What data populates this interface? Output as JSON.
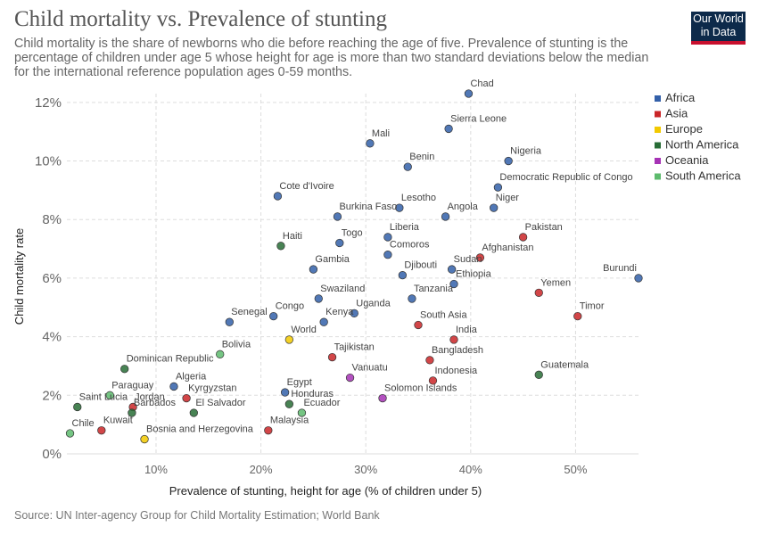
{
  "title": "Child mortality vs. Prevalence of stunting",
  "subtitle": "Child mortality is the share of newborns who die before reaching the age of five. Prevalence of stunting is the percentage of children under age 5 whose height for age is more than two standard deviations below the median for the international reference population ages 0-59 months.",
  "logo": {
    "line1": "Our World",
    "line2": "in Data"
  },
  "source": "Source: UN Inter-agency Group for Child Mortality Estimation; World Bank",
  "chart_data": {
    "type": "scatter",
    "xlabel": "Prevalence of stunting, height for age (% of children under 5)",
    "ylabel": "Child mortality rate",
    "xlim": [
      1.5,
      56
    ],
    "ylim": [
      0,
      12.3
    ],
    "x_ticks": [
      {
        "v": 10,
        "label": "10%"
      },
      {
        "v": 20,
        "label": "20%"
      },
      {
        "v": 30,
        "label": "30%"
      },
      {
        "v": 40,
        "label": "40%"
      },
      {
        "v": 50,
        "label": "50%"
      }
    ],
    "y_ticks": [
      {
        "v": 0,
        "label": "0%"
      },
      {
        "v": 2,
        "label": "2%"
      },
      {
        "v": 4,
        "label": "4%"
      },
      {
        "v": 6,
        "label": "6%"
      },
      {
        "v": 8,
        "label": "8%"
      },
      {
        "v": 10,
        "label": "10%"
      },
      {
        "v": 12,
        "label": "12%"
      }
    ],
    "grid": true,
    "legend_position": "right",
    "regions": [
      {
        "name": "Africa",
        "color": "#3360a9"
      },
      {
        "name": "Asia",
        "color": "#ca2628"
      },
      {
        "name": "Europe",
        "color": "#f2c900"
      },
      {
        "name": "North America",
        "color": "#286d36"
      },
      {
        "name": "Oceania",
        "color": "#a633b5"
      },
      {
        "name": "South America",
        "color": "#5dbb6d"
      }
    ],
    "points": [
      {
        "label": "Chad",
        "x": 39.8,
        "y": 12.3,
        "region": "Africa"
      },
      {
        "label": "Sierra Leone",
        "x": 37.9,
        "y": 11.1,
        "region": "Africa"
      },
      {
        "label": "Mali",
        "x": 30.4,
        "y": 10.6,
        "region": "Africa"
      },
      {
        "label": "Benin",
        "x": 34.0,
        "y": 9.8,
        "region": "Africa"
      },
      {
        "label": "Nigeria",
        "x": 43.6,
        "y": 10.0,
        "region": "Africa"
      },
      {
        "label": "Democratic Republic of Congo",
        "x": 42.6,
        "y": 9.1,
        "region": "Africa"
      },
      {
        "label": "Cote d'Ivoire",
        "x": 21.6,
        "y": 8.8,
        "region": "Africa"
      },
      {
        "label": "Lesotho",
        "x": 33.2,
        "y": 8.4,
        "region": "Africa"
      },
      {
        "label": "Niger",
        "x": 42.2,
        "y": 8.4,
        "region": "Africa"
      },
      {
        "label": "Burkina Faso",
        "x": 27.3,
        "y": 8.1,
        "region": "Africa"
      },
      {
        "label": "Angola",
        "x": 37.6,
        "y": 8.1,
        "region": "Africa"
      },
      {
        "label": "Haiti",
        "x": 21.9,
        "y": 7.1,
        "region": "North America"
      },
      {
        "label": "Togo",
        "x": 27.5,
        "y": 7.2,
        "region": "Africa"
      },
      {
        "label": "Liberia",
        "x": 32.1,
        "y": 7.4,
        "region": "Africa"
      },
      {
        "label": "Pakistan",
        "x": 45.0,
        "y": 7.4,
        "region": "Asia"
      },
      {
        "label": "Comoros",
        "x": 32.1,
        "y": 6.8,
        "region": "Africa"
      },
      {
        "label": "Afghanistan",
        "x": 40.9,
        "y": 6.7,
        "region": "Asia"
      },
      {
        "label": "Gambia",
        "x": 25.0,
        "y": 6.3,
        "region": "Africa"
      },
      {
        "label": "Djibouti",
        "x": 33.5,
        "y": 6.1,
        "region": "Africa"
      },
      {
        "label": "Sudan",
        "x": 38.2,
        "y": 6.3,
        "region": "Africa"
      },
      {
        "label": "Burundi",
        "x": 56.0,
        "y": 6.0,
        "region": "Africa"
      },
      {
        "label": "Ethiopia",
        "x": 38.4,
        "y": 5.8,
        "region": "Africa"
      },
      {
        "label": "Yemen",
        "x": 46.5,
        "y": 5.5,
        "region": "Asia"
      },
      {
        "label": "Swaziland",
        "x": 25.5,
        "y": 5.3,
        "region": "Africa"
      },
      {
        "label": "Tanzania",
        "x": 34.4,
        "y": 5.3,
        "region": "Africa"
      },
      {
        "label": "Timor",
        "x": 50.2,
        "y": 4.7,
        "region": "Asia"
      },
      {
        "label": "Uganda",
        "x": 28.9,
        "y": 4.8,
        "region": "Africa"
      },
      {
        "label": "Congo",
        "x": 21.2,
        "y": 4.7,
        "region": "Africa"
      },
      {
        "label": "Senegal",
        "x": 17.0,
        "y": 4.5,
        "region": "Africa"
      },
      {
        "label": "Kenya",
        "x": 26.0,
        "y": 4.5,
        "region": "Africa"
      },
      {
        "label": "South Asia",
        "x": 35.0,
        "y": 4.4,
        "region": "Asia"
      },
      {
        "label": "World",
        "x": 22.7,
        "y": 3.9,
        "region": "Europe"
      },
      {
        "label": "India",
        "x": 38.4,
        "y": 3.9,
        "region": "Asia"
      },
      {
        "label": "Bolivia",
        "x": 16.1,
        "y": 3.4,
        "region": "South America"
      },
      {
        "label": "Tajikistan",
        "x": 26.8,
        "y": 3.3,
        "region": "Asia"
      },
      {
        "label": "Bangladesh",
        "x": 36.1,
        "y": 3.2,
        "region": "Asia"
      },
      {
        "label": "Dominican Republic",
        "x": 7.0,
        "y": 2.9,
        "region": "North America"
      },
      {
        "label": "Vanuatu",
        "x": 28.5,
        "y": 2.6,
        "region": "Oceania"
      },
      {
        "label": "Indonesia",
        "x": 36.4,
        "y": 2.5,
        "region": "Asia"
      },
      {
        "label": "Guatemala",
        "x": 46.5,
        "y": 2.7,
        "region": "North America"
      },
      {
        "label": "Algeria",
        "x": 11.7,
        "y": 2.3,
        "region": "Africa"
      },
      {
        "label": "Egypt",
        "x": 22.3,
        "y": 2.1,
        "region": "Africa"
      },
      {
        "label": "Kyrgyzstan",
        "x": 12.9,
        "y": 1.9,
        "region": "Asia"
      },
      {
        "label": "Solomon Islands",
        "x": 31.6,
        "y": 1.9,
        "region": "Oceania"
      },
      {
        "label": "Paraguay",
        "x": 5.6,
        "y": 2.0,
        "region": "South America"
      },
      {
        "label": "Jordan",
        "x": 7.8,
        "y": 1.6,
        "region": "Asia"
      },
      {
        "label": "Honduras",
        "x": 22.7,
        "y": 1.7,
        "region": "North America"
      },
      {
        "label": "Saint Lucia",
        "x": 2.5,
        "y": 1.6,
        "region": "North America"
      },
      {
        "label": "Barbados",
        "x": 7.7,
        "y": 1.4,
        "region": "North America"
      },
      {
        "label": "El Salvador",
        "x": 13.6,
        "y": 1.4,
        "region": "North America"
      },
      {
        "label": "Ecuador",
        "x": 23.9,
        "y": 1.4,
        "region": "South America"
      },
      {
        "label": "Kuwait",
        "x": 4.8,
        "y": 0.8,
        "region": "Asia"
      },
      {
        "label": "Malaysia",
        "x": 20.7,
        "y": 0.8,
        "region": "Asia"
      },
      {
        "label": "Chile",
        "x": 1.8,
        "y": 0.7,
        "region": "South America"
      },
      {
        "label": "Bosnia and Herzegovina",
        "x": 8.9,
        "y": 0.5,
        "region": "Europe"
      }
    ]
  }
}
